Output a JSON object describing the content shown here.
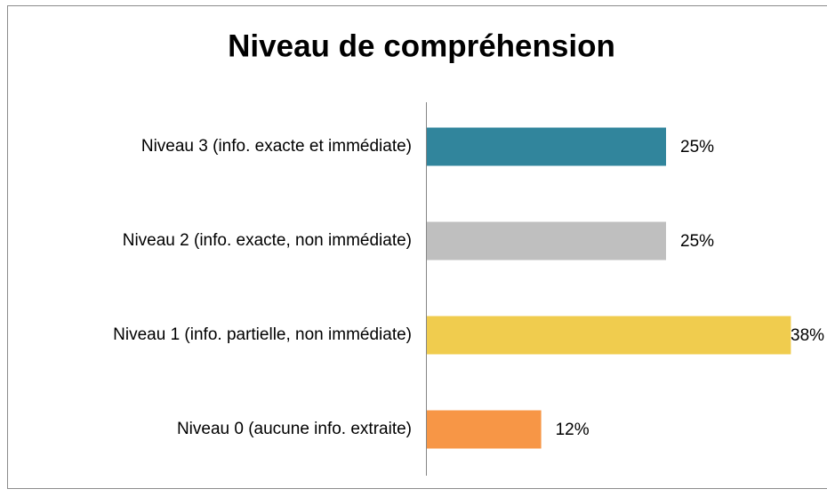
{
  "chart_data": {
    "type": "bar",
    "orientation": "horizontal",
    "title": "Niveau de compréhension",
    "categories": [
      "Niveau 3 (info. exacte et immédiate)",
      "Niveau 2 (info. exacte, non immédiate)",
      "Niveau 1 (info. partielle, non immédiate)",
      "Niveau 0 (aucune info. extraite)"
    ],
    "values": [
      25,
      25,
      38,
      12
    ],
    "value_labels": [
      "25%",
      "25%",
      "38%",
      "12%"
    ],
    "colors": [
      "#31859c",
      "#bfbfbf",
      "#f0cc4e",
      "#f79646"
    ]
  }
}
